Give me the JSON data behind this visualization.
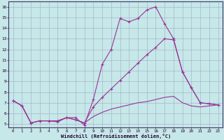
{
  "xlabel": "Windchill (Refroidissement éolien,°C)",
  "xlim": [
    -0.5,
    23.5
  ],
  "ylim": [
    4.7,
    16.5
  ],
  "yticks": [
    5,
    6,
    7,
    8,
    9,
    10,
    11,
    12,
    13,
    14,
    15,
    16
  ],
  "xticks": [
    0,
    1,
    2,
    3,
    4,
    5,
    6,
    7,
    8,
    9,
    10,
    11,
    12,
    13,
    14,
    15,
    16,
    17,
    18,
    19,
    20,
    21,
    22,
    23
  ],
  "background_color": "#c6e8e8",
  "grid_color": "#a0aac8",
  "line_color": "#993399",
  "line1_x": [
    0,
    1,
    2,
    3,
    4,
    5,
    6,
    7,
    8,
    9,
    10,
    11,
    12,
    13,
    14,
    15,
    16,
    17,
    18,
    19,
    20,
    21,
    22,
    23
  ],
  "line1_y": [
    7.2,
    6.7,
    5.1,
    5.3,
    5.3,
    5.2,
    5.6,
    5.6,
    4.9,
    7.3,
    10.6,
    12.0,
    14.9,
    14.6,
    14.9,
    15.7,
    16.0,
    14.4,
    13.0,
    9.9,
    8.4,
    7.0,
    6.9,
    6.8
  ],
  "line2_x": [
    0,
    1,
    2,
    3,
    4,
    5,
    6,
    7,
    8,
    9,
    10,
    11,
    12,
    13,
    14,
    15,
    16,
    17,
    18,
    19,
    20,
    21,
    22,
    23
  ],
  "line2_y": [
    7.2,
    6.7,
    5.1,
    5.3,
    5.3,
    5.3,
    5.6,
    5.4,
    5.1,
    6.6,
    7.5,
    8.3,
    9.1,
    9.9,
    10.7,
    11.5,
    12.2,
    13.0,
    12.9,
    9.9,
    8.4,
    7.0,
    6.9,
    6.8
  ],
  "line3_x": [
    0,
    1,
    2,
    3,
    4,
    5,
    6,
    7,
    8,
    9,
    10,
    11,
    12,
    13,
    14,
    15,
    16,
    17,
    18,
    19,
    20,
    21,
    22,
    23
  ],
  "line3_y": [
    7.2,
    6.7,
    5.1,
    5.3,
    5.3,
    5.3,
    5.6,
    5.4,
    5.1,
    5.7,
    6.1,
    6.4,
    6.6,
    6.8,
    7.0,
    7.1,
    7.3,
    7.5,
    7.6,
    7.0,
    6.7,
    6.6,
    6.7,
    6.8
  ]
}
